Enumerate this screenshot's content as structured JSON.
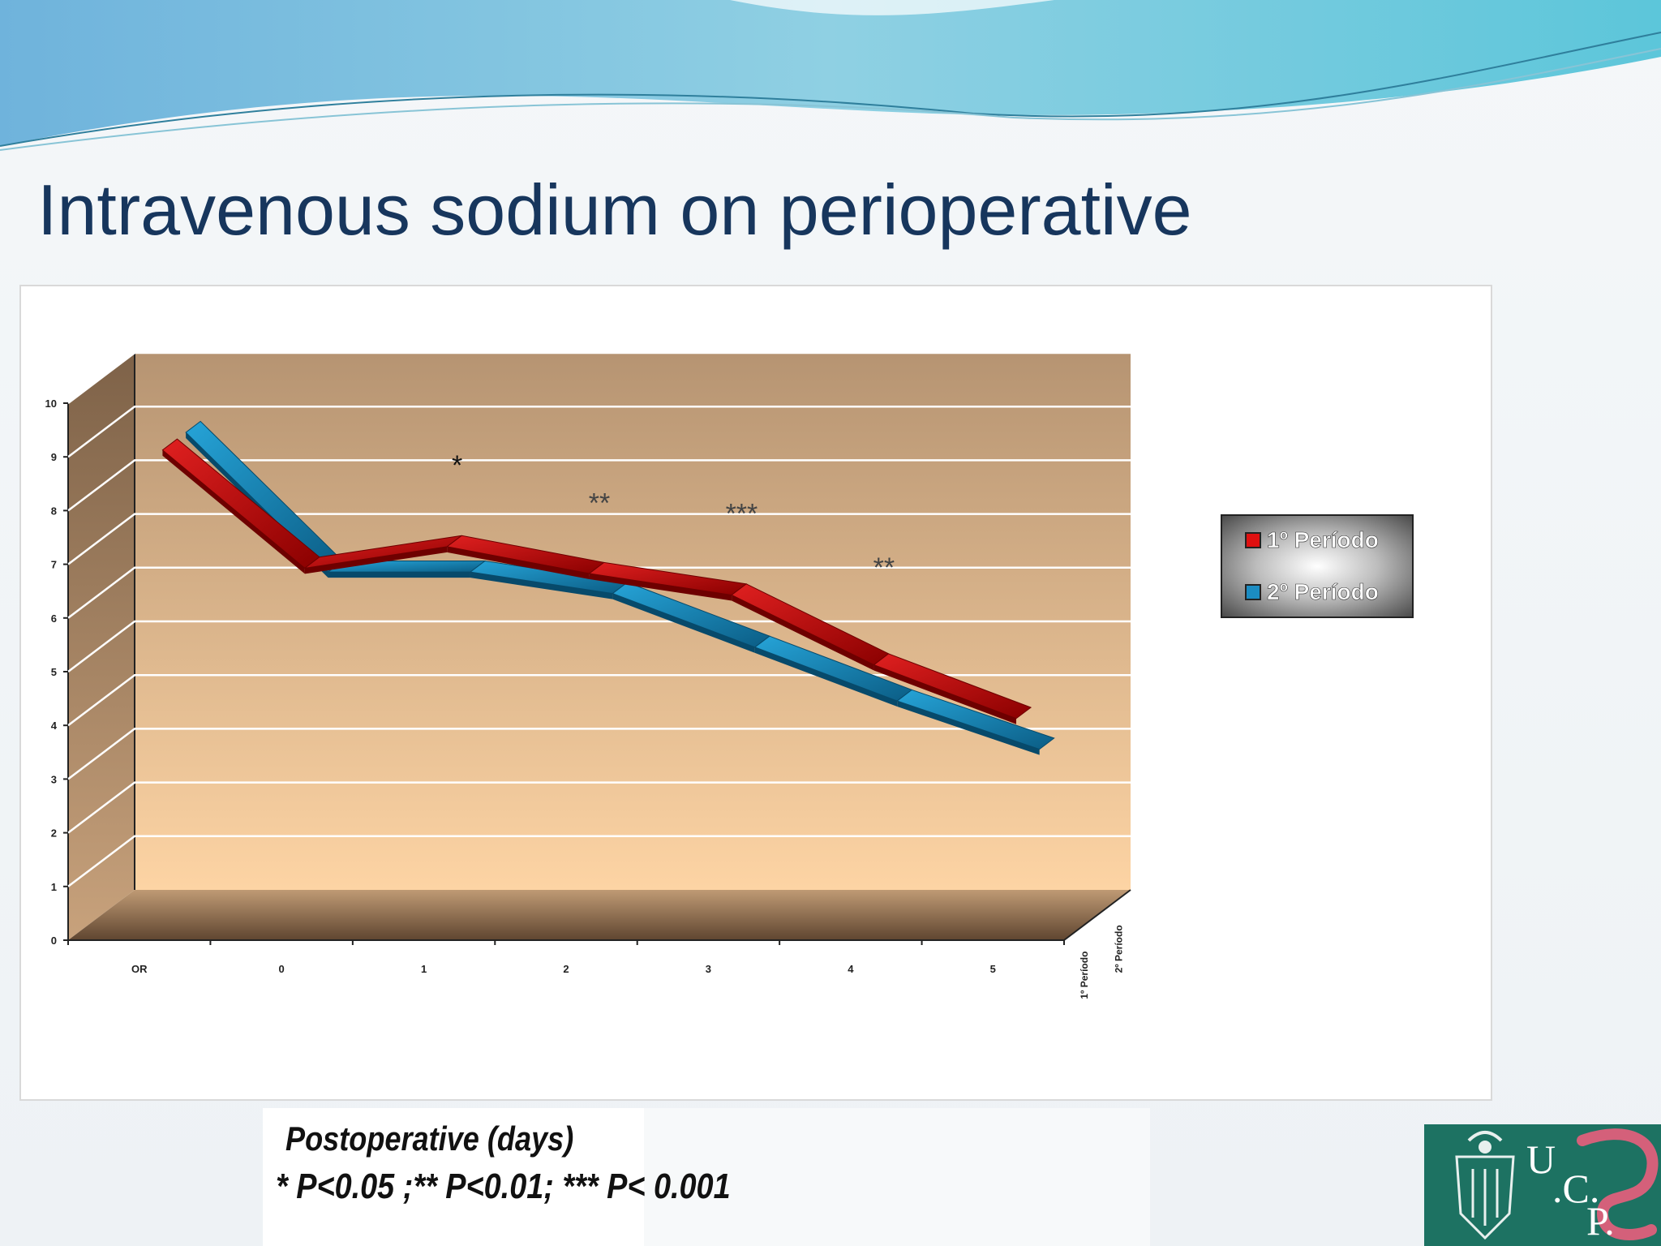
{
  "slide": {
    "title": "Intravenous sodium on perioperative",
    "xaxis_title": "Postoperative (days)",
    "significance_note": "* P<0.05 ;** P<0.01; *** P< 0.001"
  },
  "logo": {
    "letters": [
      "U",
      ".C.",
      "P."
    ]
  },
  "colors": {
    "title": "#17365d",
    "series1": "#c00000",
    "series2": "#1b8cc2",
    "wall_top": "#b69472",
    "wall_bottom": "#fdd4a4",
    "legend_bg": "#5a5a5a"
  },
  "chart_data": {
    "type": "line",
    "style": "3d-ribbon",
    "categories": [
      "OR",
      "0",
      "1",
      "2",
      "3",
      "4",
      "5"
    ],
    "yticks": [
      "0",
      "1",
      "2",
      "3",
      "4",
      "5",
      "6",
      "7",
      "8",
      "9",
      "10"
    ],
    "ylim": [
      0,
      10
    ],
    "grid": true,
    "legend_position": "right",
    "depth_labels": [
      "1º Período",
      "2º Período"
    ],
    "series": [
      {
        "name": "1º Período",
        "color": "#c00000",
        "values": [
          8.8,
          6.6,
          7.0,
          6.5,
          6.1,
          4.8,
          3.8
        ]
      },
      {
        "name": "2º Período",
        "color": "#1b8cc2",
        "values": [
          8.8,
          6.2,
          6.2,
          5.8,
          4.8,
          3.8,
          2.9
        ]
      }
    ],
    "annotations": [
      {
        "category": "1",
        "text": "*",
        "y": 8.2
      },
      {
        "category": "2",
        "text": "**",
        "y": 7.5
      },
      {
        "category": "3",
        "text": "***",
        "y": 7.3
      },
      {
        "category": "4",
        "text": "**",
        "y": 6.3
      }
    ]
  }
}
